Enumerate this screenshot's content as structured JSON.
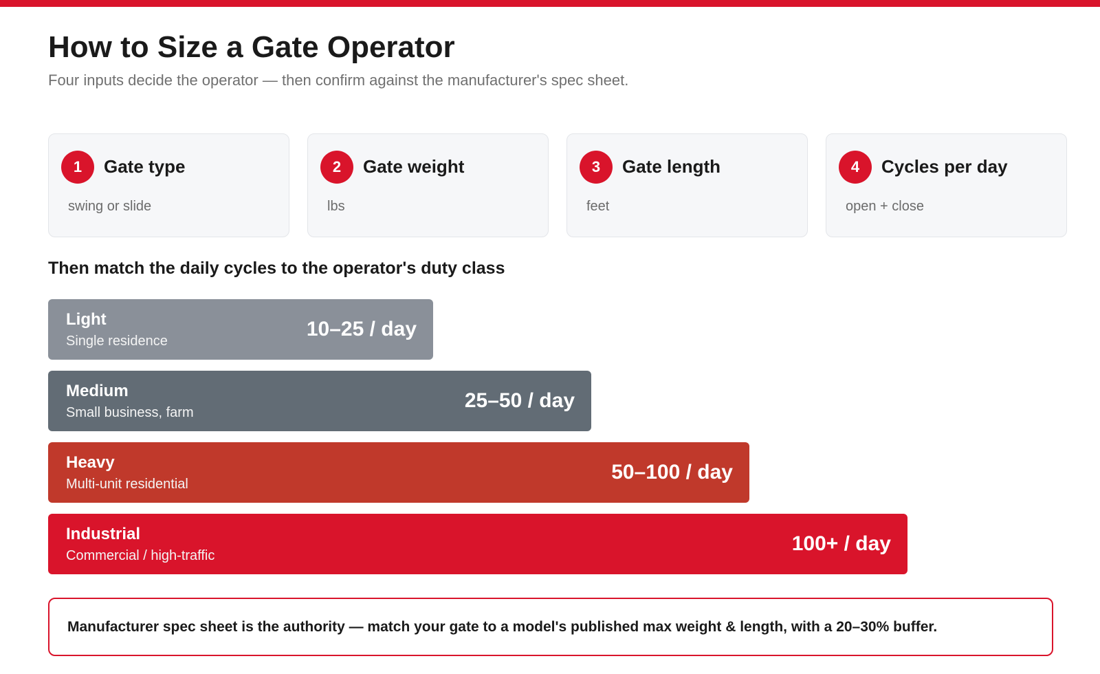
{
  "title": "How to Size a Gate Operator",
  "subtitle": "Four inputs decide the operator — then confirm against the manufacturer's spec sheet.",
  "steps": [
    {
      "num": "1",
      "title": "Gate type",
      "desc": "swing or slide"
    },
    {
      "num": "2",
      "title": "Gate weight",
      "desc": "lbs"
    },
    {
      "num": "3",
      "title": "Gate length",
      "desc": "feet"
    },
    {
      "num": "4",
      "title": "Cycles per day",
      "desc": "open + close"
    }
  ],
  "section_heading": "Then match the daily cycles to the operator's duty class",
  "duty_classes": [
    {
      "name": "Light",
      "use": "Single residence",
      "range": "10–25 / day",
      "color": "#8a9099"
    },
    {
      "name": "Medium",
      "use": "Small business, farm",
      "range": "25–50 / day",
      "color": "#626c75"
    },
    {
      "name": "Heavy",
      "use": "Multi-unit residential",
      "range": "50–100 / day",
      "color": "#c0392b"
    },
    {
      "name": "Industrial",
      "use": "Commercial / high-traffic",
      "range": "100+ / day",
      "color": "#d9142b"
    }
  ],
  "callout": "Manufacturer spec sheet is the authority — match your gate to a model's published max weight & length, with a 20–30% buffer.",
  "colors": {
    "accent": "#d9142b"
  }
}
